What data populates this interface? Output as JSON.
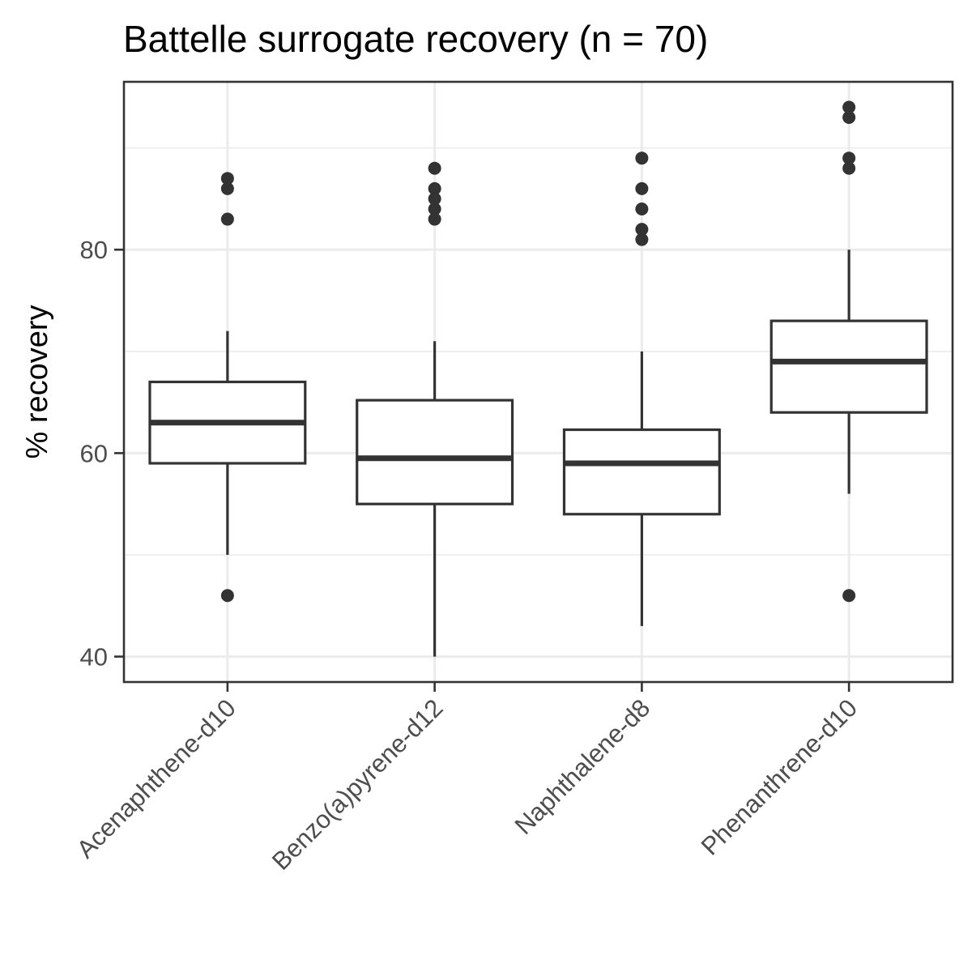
{
  "chart_data": {
    "type": "boxplot",
    "title": "Battelle surrogate recovery (n = 70)",
    "xlabel": "",
    "ylabel": "% recovery",
    "ylim": [
      37.5,
      96.5
    ],
    "y_major_ticks": [
      40,
      60,
      80
    ],
    "y_minor_ticks": [
      50,
      70,
      90
    ],
    "grid": true,
    "categories": [
      "Acenaphthene-d10",
      "Benzo(a)pyrene-d12",
      "Naphthalene-d8",
      "Phenanthrene-d10"
    ],
    "boxes": [
      {
        "category": "Acenaphthene-d10",
        "lower_whisker": 50,
        "q1": 59,
        "median": 63,
        "q3": 67,
        "upper_whisker": 72,
        "outliers": [
          46,
          83,
          86,
          87
        ]
      },
      {
        "category": "Benzo(a)pyrene-d12",
        "lower_whisker": 40,
        "q1": 55,
        "median": 59.5,
        "q3": 65.2,
        "upper_whisker": 71,
        "outliers": [
          83,
          84,
          85,
          86,
          88
        ]
      },
      {
        "category": "Naphthalene-d8",
        "lower_whisker": 43,
        "q1": 54,
        "median": 59,
        "q3": 62.3,
        "upper_whisker": 70,
        "outliers": [
          81,
          82,
          84,
          86,
          89
        ]
      },
      {
        "category": "Phenanthrene-d10",
        "lower_whisker": 56,
        "q1": 64,
        "median": 69,
        "q3": 73,
        "upper_whisker": 80,
        "outliers": [
          46,
          88,
          89,
          93,
          94
        ]
      }
    ]
  }
}
